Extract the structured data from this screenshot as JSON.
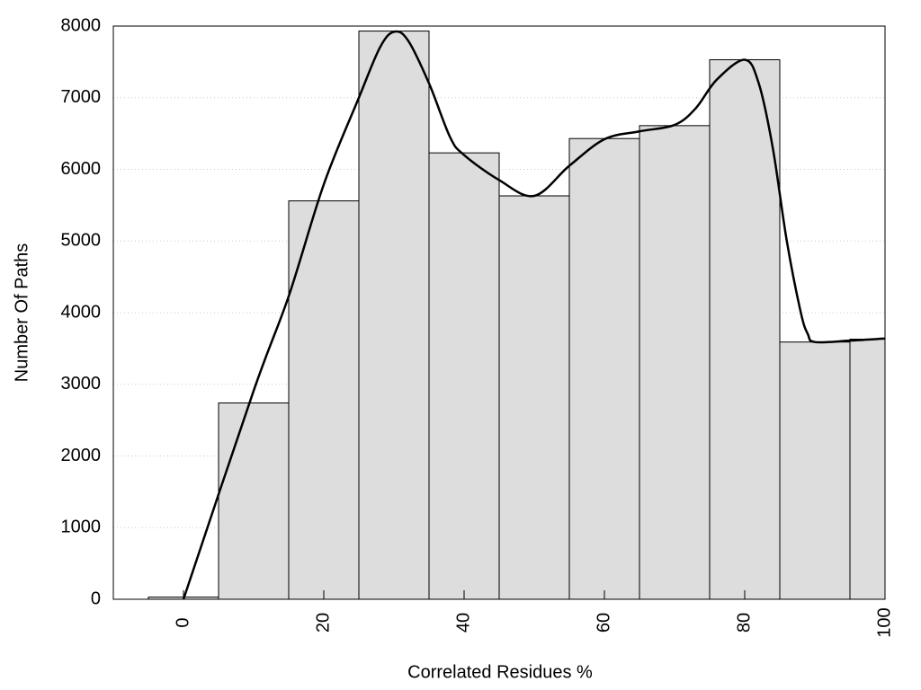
{
  "chart_data": {
    "type": "histogram",
    "xlabel": "Correlated Residues %",
    "ylabel": "Number Of Paths",
    "bins": [
      -5,
      5,
      15,
      25,
      35,
      45,
      55,
      65,
      75,
      85,
      95,
      105
    ],
    "counts": [
      30,
      2740,
      5560,
      7930,
      6230,
      5630,
      6430,
      6610,
      7530,
      3590,
      3630
    ],
    "color": "#dddddd",
    "line": {
      "color": "#000000",
      "x": [
        0,
        10,
        15,
        20,
        25,
        28,
        30,
        32,
        35,
        38,
        40,
        45,
        50,
        55,
        60,
        65,
        70,
        73,
        76,
        80,
        82,
        84,
        86,
        88,
        89,
        90,
        95,
        100
      ],
      "values": [
        0,
        2910,
        4230,
        5790,
        7000,
        7700,
        7920,
        7800,
        7200,
        6450,
        6200,
        5850,
        5630,
        6050,
        6420,
        6530,
        6620,
        6850,
        7250,
        7530,
        7200,
        6300,
        5000,
        4000,
        3700,
        3590,
        3610,
        3640
      ]
    },
    "xlim": [
      -10,
      100
    ],
    "xticks": [
      0,
      20,
      40,
      60,
      80,
      100
    ],
    "ylim": [
      0,
      8000
    ],
    "yticks": [
      0,
      1000,
      2000,
      3000,
      4000,
      5000,
      6000,
      7000,
      8000
    ],
    "grid": true
  }
}
